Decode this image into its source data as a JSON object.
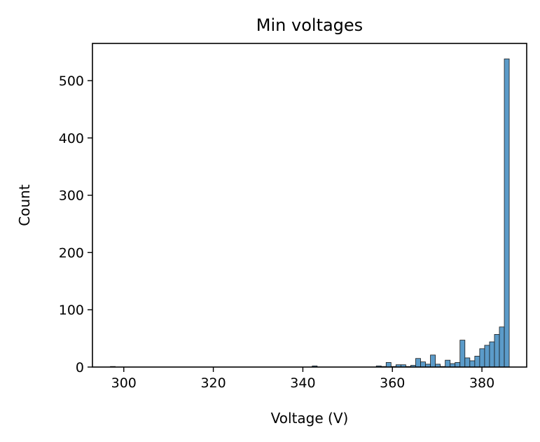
{
  "chart_data": {
    "type": "bar",
    "title": "Min voltages",
    "xlabel": "Voltage (V)",
    "ylabel": "Count",
    "xlim": [
      293,
      390
    ],
    "ylim": [
      0,
      565
    ],
    "xticks": [
      300,
      320,
      340,
      360,
      380
    ],
    "yticks": [
      0,
      100,
      200,
      300,
      400,
      500
    ],
    "grid": false,
    "legend": "none",
    "bar_color": "#5b9bc9",
    "bar_edge_color": "#1a1a1a",
    "bin_start": 297.0,
    "bin_width": 1.1,
    "series": [
      {
        "values": [
          1,
          0,
          0,
          0,
          0,
          0,
          0,
          0,
          0,
          0,
          0,
          0,
          0,
          0,
          0,
          0,
          0,
          0,
          0,
          0,
          0,
          0,
          0,
          0,
          0,
          0,
          0,
          0,
          0,
          0,
          0,
          0,
          0,
          0,
          0,
          0,
          0,
          0,
          0,
          0,
          0,
          2,
          0,
          0,
          0,
          0,
          0,
          0,
          0,
          0,
          0,
          0,
          0,
          0,
          2,
          1,
          8,
          1,
          4,
          4,
          1,
          3,
          15,
          9,
          5,
          21,
          5,
          1,
          12,
          6,
          8,
          47,
          16,
          11,
          19,
          32,
          38,
          44,
          57,
          70,
          538
        ]
      }
    ]
  }
}
